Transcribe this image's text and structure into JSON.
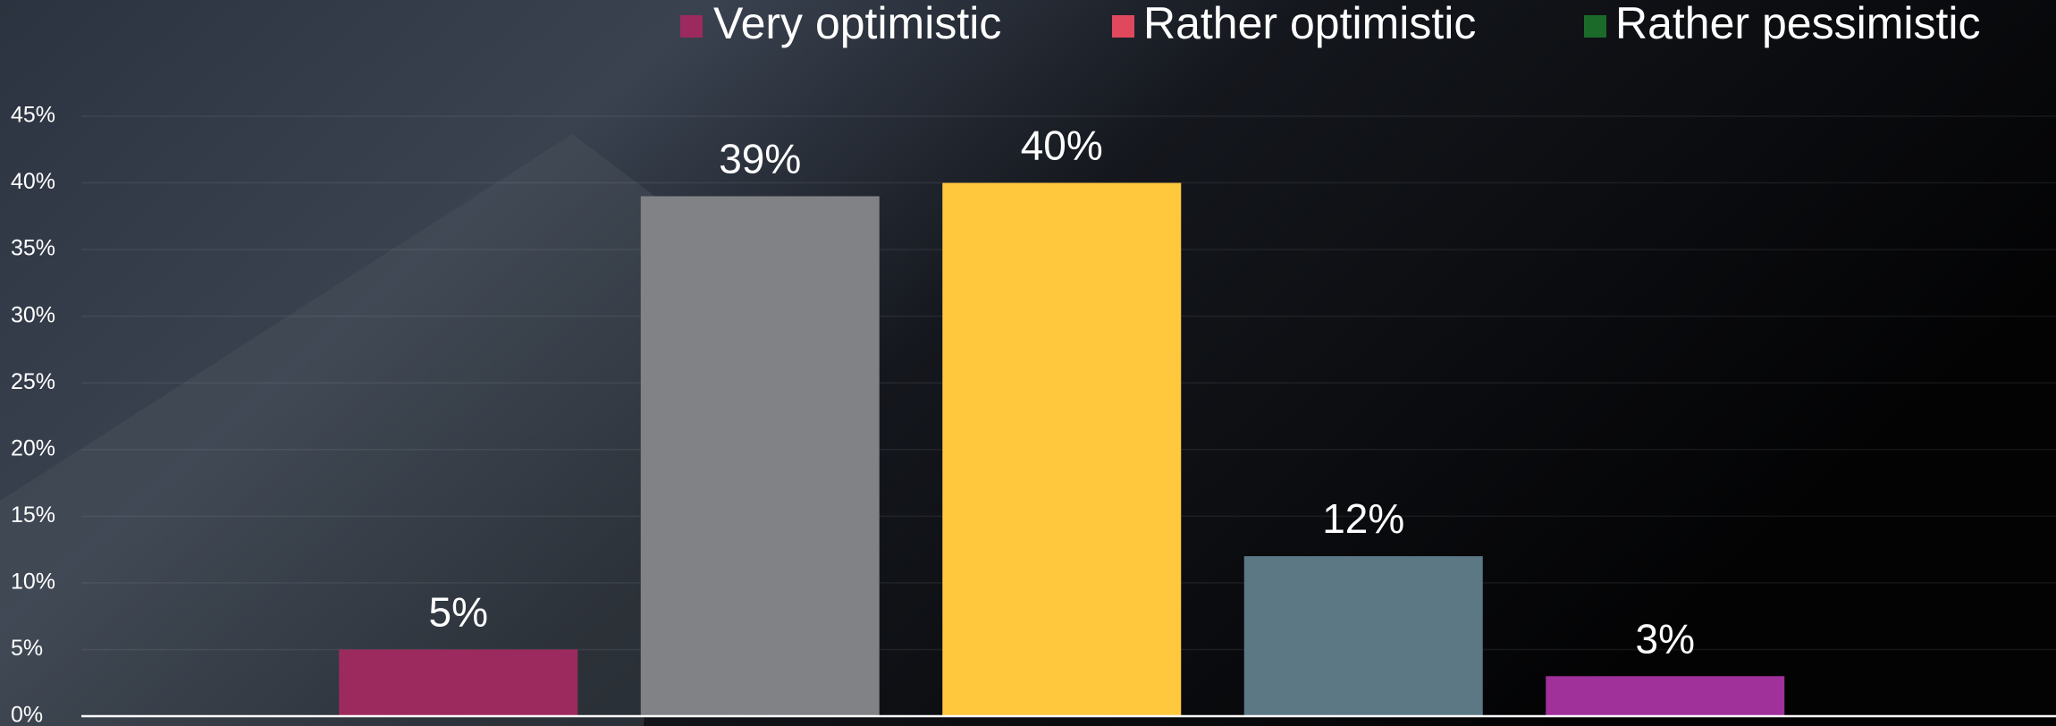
{
  "chart_data": {
    "type": "bar",
    "legend": [
      {
        "name": "Very optimistic",
        "color": "#9c2a5e"
      },
      {
        "name": "Rather optimistic",
        "color": "#e0485d"
      },
      {
        "name": "Rather pessimistic",
        "color": "#1c6a2a"
      }
    ],
    "categories": [
      null,
      null,
      null,
      null,
      null
    ],
    "values": [
      5,
      39,
      40,
      12,
      3
    ],
    "value_labels": [
      "5%",
      "39%",
      "40%",
      "12%",
      "3%"
    ],
    "colors": [
      "#9c2a5e",
      "#808285",
      "#ffc83d",
      "#5b7884",
      "#a0309a"
    ],
    "ylim": [
      0,
      45
    ],
    "yticks": [
      {
        "value": 0,
        "label": "0%"
      },
      {
        "value": 5,
        "label": "5%"
      },
      {
        "value": 10,
        "label": "10%"
      },
      {
        "value": 15,
        "label": "15%"
      },
      {
        "value": 20,
        "label": "20%"
      },
      {
        "value": 25,
        "label": "25%"
      },
      {
        "value": 30,
        "label": "30%"
      },
      {
        "value": 35,
        "label": "35%"
      },
      {
        "value": 40,
        "label": "40%"
      },
      {
        "value": 45,
        "label": "45%"
      }
    ],
    "grid": true
  }
}
